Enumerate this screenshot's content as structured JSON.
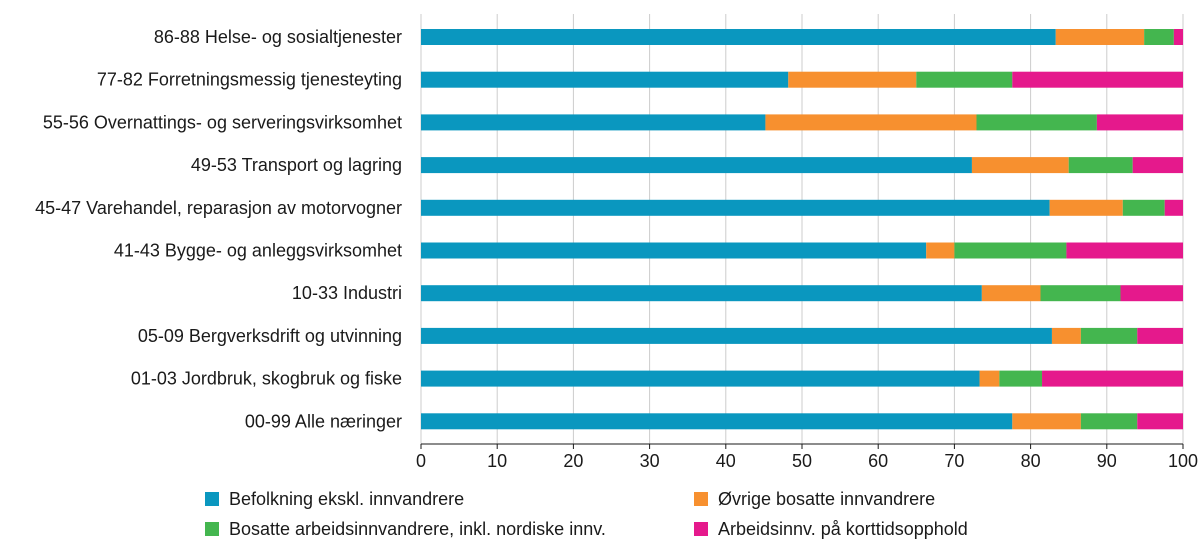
{
  "chart_data": {
    "type": "bar",
    "orientation": "horizontal",
    "stacked": true,
    "title": "",
    "xlabel": "",
    "ylabel": "",
    "xlim": [
      0,
      100
    ],
    "xticks": [
      0,
      10,
      20,
      30,
      40,
      50,
      60,
      70,
      80,
      90,
      100
    ],
    "grid": true,
    "legend_position": "bottom",
    "categories": [
      "86-88 Helse- og sosialtjenester",
      "77-82 Forretningsmessig tjenesteyting",
      "55-56 Overnattings- og serveringsvirksomhet",
      "49-53 Transport og lagring",
      "45-47 Varehandel, reparasjon av motorvogner",
      "41-43 Bygge- og anleggsvirksomhet",
      "10-33 Industri",
      "05-09 Bergverksdrift og utvinning",
      "01-03 Jordbruk, skogbruk og fiske",
      "00-99 Alle næringer"
    ],
    "series": [
      {
        "name": "Befolkning ekskl. innvandrere",
        "color": "#0a97bf",
        "values": [
          83.3,
          48.2,
          45.2,
          72.3,
          82.5,
          66.3,
          73.6,
          82.8,
          73.3,
          77.6
        ]
      },
      {
        "name": "Øvrige bosatte innvandrere",
        "color": "#f7902f",
        "values": [
          11.6,
          16.8,
          27.7,
          12.7,
          9.6,
          3.7,
          7.7,
          3.8,
          2.6,
          9.0
        ]
      },
      {
        "name": "Bosatte arbeidsinnvandrere, inkl. nordiske innv.",
        "color": "#44b64f",
        "values": [
          3.9,
          12.6,
          15.8,
          8.4,
          5.5,
          14.7,
          10.5,
          7.4,
          5.6,
          7.4
        ]
      },
      {
        "name": "Arbeidsinnv. på korttidsopphold",
        "color": "#e5198c",
        "values": [
          1.2,
          22.4,
          11.3,
          6.6,
          2.4,
          15.3,
          8.2,
          6.0,
          18.5,
          6.0
        ]
      }
    ]
  }
}
